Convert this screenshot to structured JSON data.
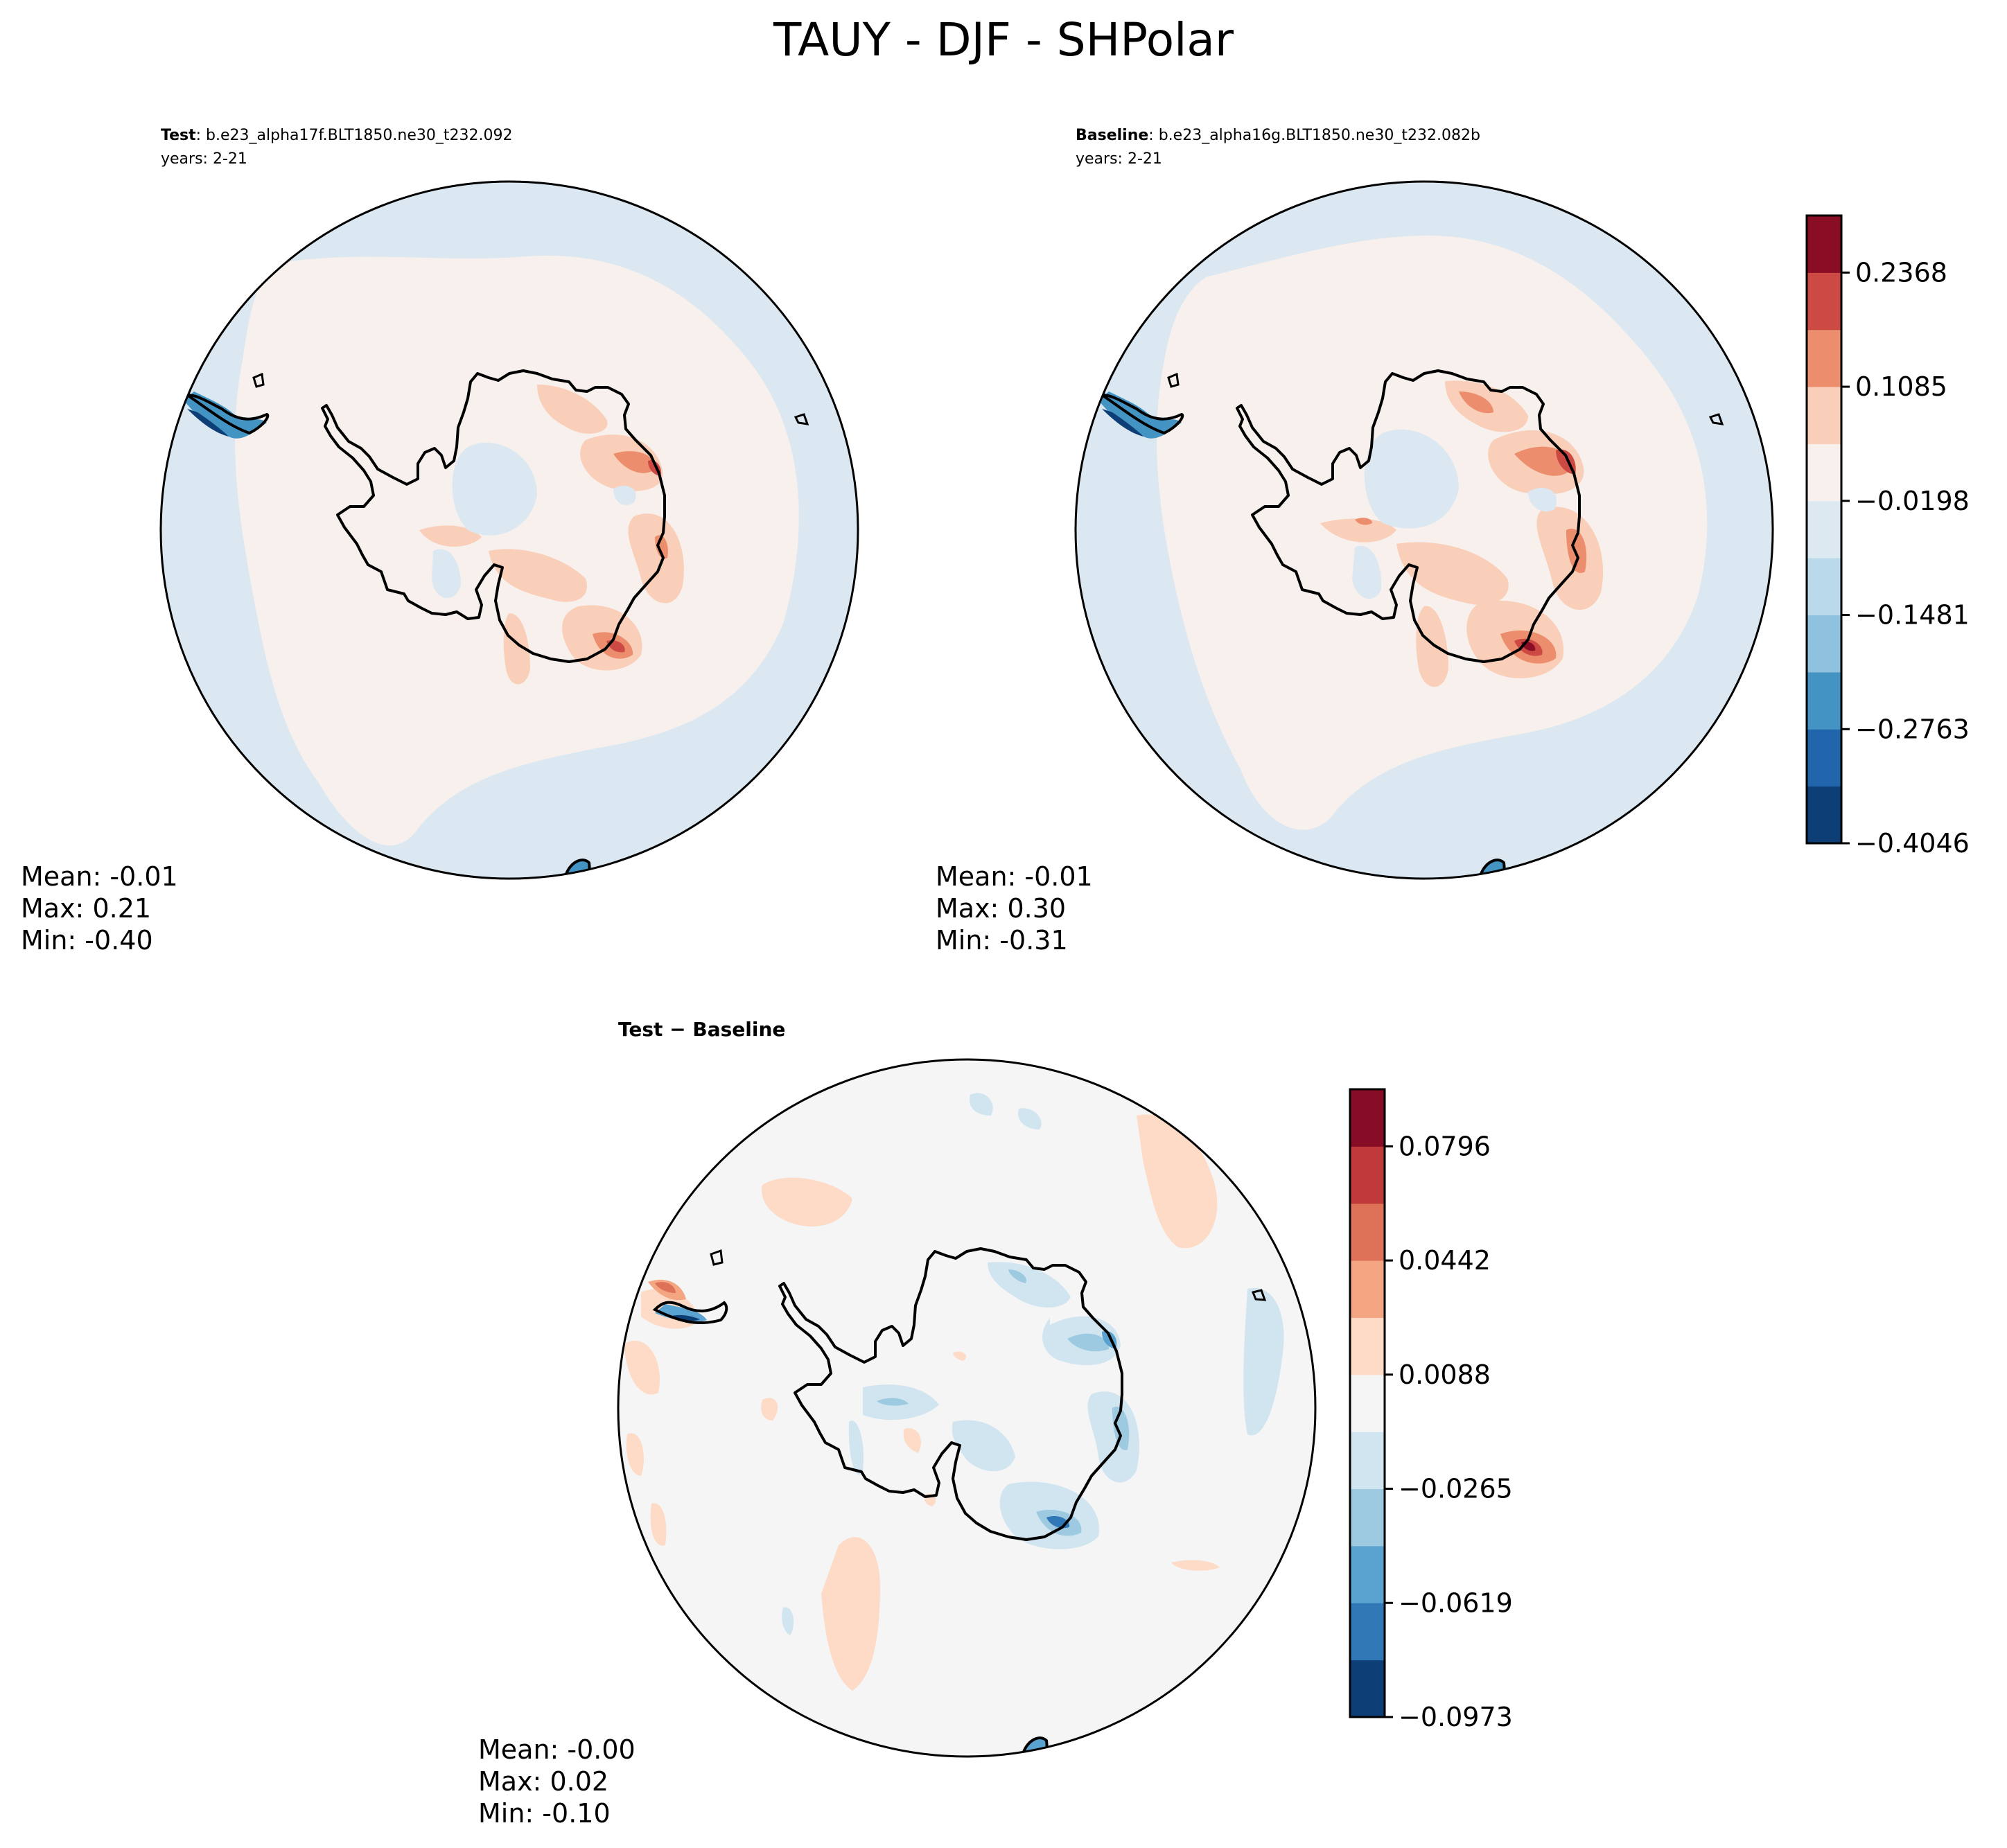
{
  "title": "TAUY - DJF - SHPolar",
  "panels": {
    "test": {
      "label": "Test",
      "case": ": b.e23_alpha17f.BLT1850.ne30_t232.092",
      "years": "years: 2-21",
      "stats": {
        "mean": "Mean: -0.01",
        "max": "Max:  0.21",
        "min": "Min: -0.40"
      }
    },
    "baseline": {
      "label": "Baseline",
      "case": ": b.e23_alpha16g.BLT1850.ne30_t232.082b",
      "years": "years: 2-21",
      "stats": {
        "mean": "Mean: -0.01",
        "max": "Max:  0.30",
        "min": "Min: -0.31"
      }
    },
    "diff": {
      "label": "Test − Baseline",
      "stats": {
        "mean": "Mean: -0.00",
        "max": "Max:  0.02",
        "min": "Min: -0.10"
      }
    }
  },
  "colorbars": {
    "main": {
      "tick_labels": [
        "0.2368",
        "0.1085",
        "−0.0198",
        "−0.1481",
        "−0.2763",
        "−0.4046"
      ],
      "ticks": [
        0.2368,
        0.1085,
        -0.0198,
        -0.1481,
        -0.2763,
        -0.4046
      ],
      "colors": [
        "#0d3f76",
        "#2166ac",
        "#4393c3",
        "#8fc2de",
        "#bad9ea",
        "#dde9f1",
        "#f7f0ec",
        "#f9cfb9",
        "#ec8e6e",
        "#cd4a44",
        "#8b0c25"
      ]
    },
    "diff": {
      "tick_labels": [
        "0.0796",
        "0.0442",
        "0.0088",
        "−0.0265",
        "−0.0619",
        "−0.0973"
      ],
      "ticks": [
        0.0796,
        0.0442,
        0.0088,
        -0.0265,
        -0.0619,
        -0.0973
      ],
      "colors": [
        "#0d3f76",
        "#2f77b5",
        "#5aa2cf",
        "#9ecae1",
        "#d1e5f0",
        "#f5f5f5",
        "#fddbc7",
        "#f4a582",
        "#dd7259",
        "#c03a3c",
        "#870c26"
      ]
    }
  },
  "colors": {
    "ocean_test": "#dce8f1",
    "ocean_diff": "#f5f5f5",
    "positive_light": "#f7f0ec",
    "positive_mid": "#f9cfb9",
    "positive_strong": "#ec8e6e",
    "positive_max": "#cd4a44",
    "negative_light": "#dce8f1"
  }
}
